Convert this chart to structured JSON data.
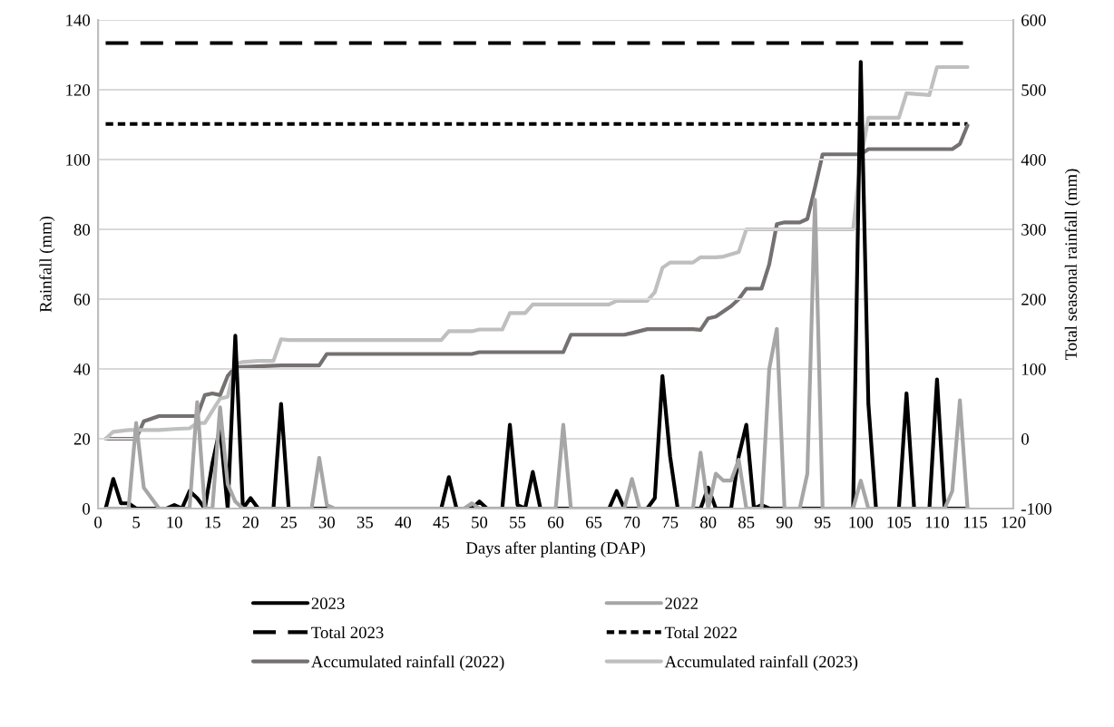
{
  "chart_data": {
    "type": "line",
    "xlabel": "Days after planting (DAP)",
    "ylabel": "Rainfall (mm)",
    "y2label": "Total seasonal rainfall (mm)",
    "xlim": [
      0,
      120
    ],
    "xticks": [
      0,
      5,
      10,
      15,
      20,
      25,
      30,
      35,
      40,
      45,
      50,
      55,
      60,
      65,
      70,
      75,
      80,
      85,
      90,
      95,
      100,
      105,
      110,
      115,
      120
    ],
    "ylim": [
      0,
      140
    ],
    "yticks": [
      0,
      20,
      40,
      60,
      80,
      100,
      120,
      140
    ],
    "y2lim": [
      -100,
      600
    ],
    "y2ticks": [
      -100,
      0,
      100,
      200,
      300,
      400,
      500,
      600
    ],
    "grid": "y",
    "legend": "bottom",
    "marker": "none",
    "series": [
      {
        "name": "2023",
        "color": "#000000",
        "line_style": "solid",
        "x": [
          1,
          2,
          3,
          4,
          5,
          9,
          10,
          11,
          12,
          13,
          14,
          15,
          16,
          17,
          18,
          19,
          20,
          21,
          23,
          24,
          25,
          45,
          46,
          47,
          49,
          50,
          51,
          53,
          54,
          55,
          56,
          57,
          58,
          67,
          68,
          69,
          72,
          73,
          74,
          75,
          76,
          79,
          80,
          81,
          83,
          84,
          85,
          86,
          87,
          88,
          99,
          100,
          101,
          102,
          105,
          106,
          107,
          109,
          110,
          111,
          114
        ],
        "values": [
          0,
          8.5,
          1.5,
          1.5,
          0,
          0,
          1,
          0,
          5,
          3,
          0,
          13,
          23,
          0,
          49.5,
          0,
          3,
          0,
          0,
          30,
          0,
          0,
          9,
          0,
          0,
          2,
          0,
          0,
          24,
          1,
          0,
          10.5,
          0,
          0,
          5,
          0,
          0,
          3,
          38,
          15,
          0,
          0,
          6,
          0,
          0,
          15,
          24,
          0,
          1,
          0,
          0,
          128,
          30,
          0,
          0,
          33,
          0,
          0,
          37,
          0,
          0
        ]
      },
      {
        "name": "2022",
        "color": "#a6a6a6",
        "line_style": "solid",
        "x": [
          1,
          4,
          5,
          6,
          7,
          8,
          12,
          13,
          14,
          15,
          16,
          17,
          18,
          19,
          28,
          29,
          30,
          31,
          48,
          49,
          50,
          60,
          61,
          62,
          69,
          70,
          71,
          78,
          79,
          80,
          81,
          82,
          83,
          84,
          85,
          87,
          88,
          89,
          90,
          92,
          93,
          94,
          95,
          99,
          100,
          101,
          111,
          112,
          113,
          114
        ],
        "values": [
          0,
          0,
          24.5,
          6,
          3,
          0,
          0,
          30.5,
          0,
          0,
          29,
          7,
          2,
          0,
          0,
          14.5,
          1,
          0,
          0,
          1.5,
          0,
          0,
          24,
          0,
          0,
          8.5,
          0,
          0,
          16,
          0,
          10,
          8,
          8,
          14,
          0,
          0,
          40,
          51.5,
          0,
          0,
          10,
          88.5,
          0,
          0,
          8,
          0,
          0,
          5,
          31,
          0
        ]
      },
      {
        "name": "Total 2023",
        "color": "#000000",
        "line_style": "dashed",
        "axis": "y2",
        "x": [
          1,
          114
        ],
        "values": [
          567,
          567
        ]
      },
      {
        "name": "Total 2022",
        "color": "#000000",
        "line_style": "dotted",
        "axis": "y2",
        "x": [
          1,
          114
        ],
        "values": [
          451,
          451
        ]
      },
      {
        "name": "Accumulated rainfall (2022)",
        "color": "#767171",
        "line_style": "solid",
        "axis": "y2",
        "x": [
          1,
          4,
          5,
          6,
          8,
          13,
          14,
          15,
          16,
          17,
          18,
          24,
          29,
          30,
          49,
          50,
          61,
          62,
          69,
          70,
          72,
          78,
          79,
          80,
          81,
          83,
          84,
          85,
          87,
          88,
          89,
          90,
          92,
          93,
          94,
          95,
          100,
          101,
          111,
          112,
          113,
          114
        ],
        "values": [
          0,
          0,
          0,
          25,
          32.5,
          32.5,
          62.5,
          65,
          62.5,
          90,
          102.5,
          105,
          105,
          121.5,
          121.5,
          124,
          124,
          149,
          149,
          151.5,
          157,
          157,
          156,
          172.5,
          175,
          190,
          200,
          215,
          215,
          250,
          307.5,
          310,
          310,
          315,
          360,
          407.5,
          407.5,
          415,
          415,
          415,
          422.5,
          449
        ]
      },
      {
        "name": "Accumulated rainfall (2023)",
        "color": "#bfbfbf",
        "line_style": "solid",
        "axis": "y2",
        "x": [
          1,
          2,
          4,
          8,
          10,
          12,
          13,
          14,
          15,
          16,
          17,
          18,
          19,
          21,
          23,
          24,
          25,
          45,
          46,
          49,
          50,
          53,
          54,
          56,
          57,
          67,
          68,
          72,
          73,
          74,
          75,
          78,
          79,
          81,
          82,
          84,
          85,
          99,
          100,
          101,
          105,
          106,
          109,
          110,
          114
        ],
        "values": [
          0,
          10,
          12.5,
          12.5,
          14,
          15,
          22.5,
          22.5,
          40,
          57.5,
          60,
          107.5,
          110,
          111.5,
          111.5,
          142.5,
          141.5,
          141.5,
          154,
          154,
          156.5,
          156.5,
          180,
          180,
          192.5,
          192.5,
          197.5,
          197.5,
          210,
          245,
          252.5,
          252.5,
          260,
          260,
          261,
          267.5,
          300,
          300,
          400,
          460,
          460,
          495,
          492.5,
          532.5,
          532.5
        ]
      }
    ]
  }
}
